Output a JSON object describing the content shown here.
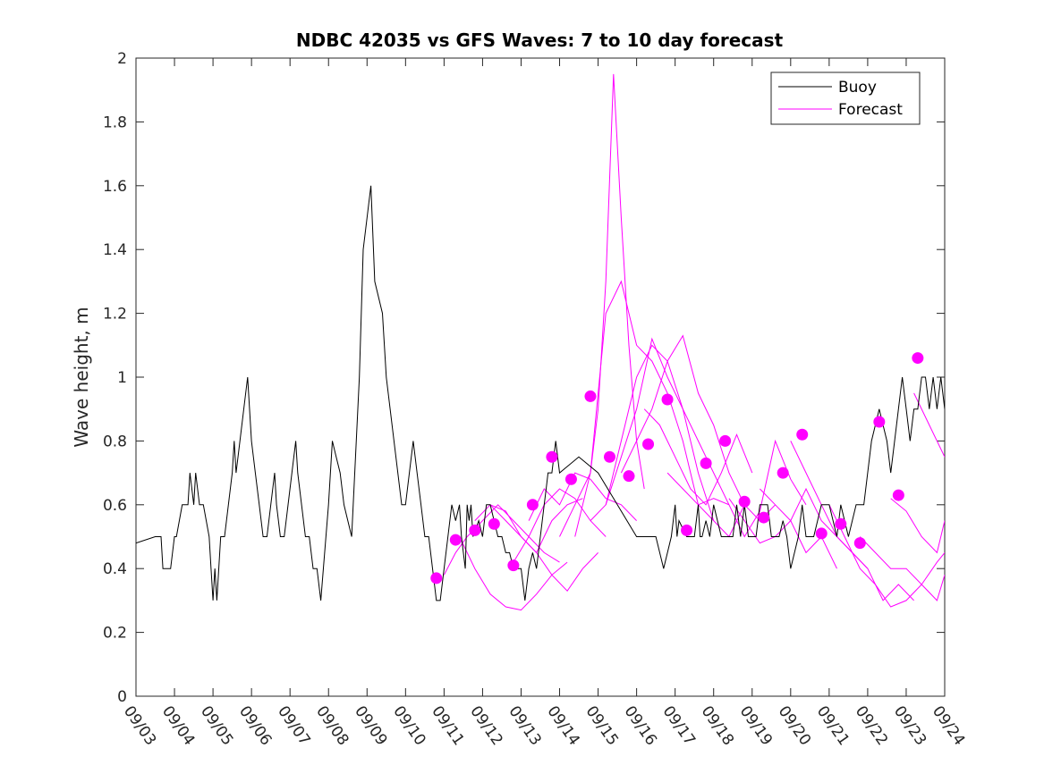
{
  "chart_data": {
    "type": "line",
    "title": "NDBC 42035 vs GFS Waves: 7 to 10 day forecast",
    "xlabel": "",
    "ylabel": "Wave height, m",
    "xlim": [
      0,
      21
    ],
    "ylim": [
      0,
      2
    ],
    "x_tick_labels": [
      "09/03",
      "09/04",
      "09/05",
      "09/06",
      "09/07",
      "09/08",
      "09/09",
      "09/10",
      "09/11",
      "09/12",
      "09/13",
      "09/14",
      "09/15",
      "09/16",
      "09/17",
      "09/18",
      "09/19",
      "09/20",
      "09/21",
      "09/22",
      "09/23",
      "09/24"
    ],
    "y_ticks": [
      0,
      0.2,
      0.4,
      0.6,
      0.8,
      1,
      1.2,
      1.4,
      1.6,
      1.8,
      2
    ],
    "y_tick_labels": [
      "0",
      "0.2",
      "0.4",
      "0.6",
      "0.8",
      "1",
      "1.2",
      "1.4",
      "1.6",
      "1.8",
      "2"
    ],
    "legend": {
      "position": "top-right",
      "entries": [
        {
          "label": "Buoy",
          "color": "#000000"
        },
        {
          "label": "Forecast",
          "color": "#ff00ff"
        }
      ]
    },
    "series": [
      {
        "name": "Buoy",
        "color": "#000000",
        "x": [
          0.0,
          0.5,
          0.65,
          0.7,
          0.9,
          1.0,
          1.05,
          1.2,
          1.35,
          1.4,
          1.5,
          1.55,
          1.65,
          1.75,
          1.9,
          1.95,
          2.0,
          2.05,
          2.1,
          2.2,
          2.3,
          2.4,
          2.5,
          2.55,
          2.6,
          2.7,
          2.8,
          2.9,
          3.0,
          3.1,
          3.2,
          3.3,
          3.4,
          3.5,
          3.6,
          3.65,
          3.75,
          3.85,
          3.95,
          4.05,
          4.15,
          4.2,
          4.3,
          4.4,
          4.5,
          4.6,
          4.7,
          4.8,
          5.0,
          5.1,
          5.2,
          5.3,
          5.4,
          5.5,
          5.6,
          5.8,
          5.9,
          6.0,
          6.1,
          6.2,
          6.4,
          6.5,
          6.6,
          6.7,
          6.8,
          6.9,
          7.0,
          7.1,
          7.2,
          7.3,
          7.4,
          7.5,
          7.6,
          7.7,
          7.8,
          7.9,
          8.0,
          8.1,
          8.2,
          8.3,
          8.4,
          8.45,
          8.55,
          8.6,
          8.65,
          8.7,
          8.75,
          8.9,
          9.0,
          9.1,
          9.2,
          9.3,
          9.4,
          9.5,
          9.6,
          9.7,
          9.8,
          9.9,
          10.0,
          10.1,
          10.2,
          10.3,
          10.4,
          10.5,
          10.6,
          10.65,
          10.7,
          10.8,
          10.9,
          11.0,
          11.5,
          12.0,
          12.5,
          13.0,
          13.5,
          13.7,
          13.9,
          14.0,
          14.05,
          14.1,
          14.3,
          14.5,
          14.6,
          14.65,
          14.7,
          14.8,
          14.9,
          15.0,
          15.2,
          15.4,
          15.5,
          15.6,
          15.7,
          15.8,
          15.9,
          16.0,
          16.1,
          16.2,
          16.4,
          16.5,
          16.7,
          16.8,
          16.9,
          17.0,
          17.2,
          17.3,
          17.4,
          17.6,
          17.8,
          18.0,
          18.2,
          18.3,
          18.5,
          18.6,
          18.7,
          18.9,
          19.0,
          19.1,
          19.3,
          19.5,
          19.6,
          19.7,
          19.8,
          19.9,
          20.0,
          20.1,
          20.2,
          20.3,
          20.4,
          20.5,
          20.6,
          20.7,
          20.8,
          20.9,
          21.0
        ],
        "values": [
          0.48,
          0.5,
          0.5,
          0.4,
          0.4,
          0.5,
          0.5,
          0.6,
          0.6,
          0.7,
          0.6,
          0.7,
          0.6,
          0.6,
          0.5,
          0.4,
          0.3,
          0.4,
          0.3,
          0.5,
          0.5,
          0.6,
          0.7,
          0.8,
          0.7,
          0.8,
          0.9,
          1.0,
          0.8,
          0.7,
          0.6,
          0.5,
          0.5,
          0.6,
          0.7,
          0.6,
          0.5,
          0.5,
          0.6,
          0.7,
          0.8,
          0.7,
          0.6,
          0.5,
          0.5,
          0.4,
          0.4,
          0.3,
          0.6,
          0.8,
          0.75,
          0.7,
          0.6,
          0.55,
          0.5,
          1.0,
          1.4,
          1.5,
          1.6,
          1.3,
          1.2,
          1.0,
          0.9,
          0.8,
          0.7,
          0.6,
          0.6,
          0.7,
          0.8,
          0.7,
          0.6,
          0.5,
          0.5,
          0.4,
          0.3,
          0.3,
          0.4,
          0.5,
          0.6,
          0.55,
          0.6,
          0.5,
          0.4,
          0.6,
          0.55,
          0.6,
          0.5,
          0.55,
          0.5,
          0.6,
          0.6,
          0.55,
          0.5,
          0.5,
          0.45,
          0.45,
          0.4,
          0.4,
          0.4,
          0.3,
          0.4,
          0.45,
          0.4,
          0.5,
          0.6,
          0.65,
          0.7,
          0.7,
          0.8,
          0.7,
          0.75,
          0.7,
          0.6,
          0.5,
          0.5,
          0.4,
          0.5,
          0.6,
          0.5,
          0.55,
          0.5,
          0.5,
          0.6,
          0.5,
          0.5,
          0.55,
          0.5,
          0.6,
          0.5,
          0.5,
          0.5,
          0.6,
          0.5,
          0.6,
          0.5,
          0.5,
          0.5,
          0.6,
          0.6,
          0.5,
          0.5,
          0.55,
          0.5,
          0.4,
          0.5,
          0.6,
          0.5,
          0.5,
          0.6,
          0.6,
          0.5,
          0.6,
          0.5,
          0.55,
          0.6,
          0.6,
          0.7,
          0.8,
          0.9,
          0.8,
          0.7,
          0.8,
          0.9,
          1.0,
          0.9,
          0.8,
          0.9,
          0.9,
          1.0,
          1.0,
          0.9,
          1.0,
          0.9,
          1.0,
          0.9
        ]
      },
      {
        "name": "Forecast",
        "color": "#ff00ff",
        "lines": [
          {
            "x": [
              8.0,
              8.3,
              8.6,
              9.0,
              9.4,
              9.8,
              10.2,
              10.6,
              11.0
            ],
            "values": [
              0.38,
              0.45,
              0.5,
              0.55,
              0.6,
              0.55,
              0.5,
              0.45,
              0.42
            ]
          },
          {
            "x": [
              8.4,
              8.8,
              9.2,
              9.6,
              10.0,
              10.4,
              10.8,
              11.2
            ],
            "values": [
              0.5,
              0.4,
              0.32,
              0.28,
              0.27,
              0.32,
              0.38,
              0.42
            ]
          },
          {
            "x": [
              8.8,
              9.2,
              9.6,
              10.0,
              10.4,
              10.8,
              11.2,
              11.6
            ],
            "values": [
              0.55,
              0.6,
              0.58,
              0.5,
              0.45,
              0.55,
              0.6,
              0.62
            ]
          },
          {
            "x": [
              9.2,
              9.6,
              10.0,
              10.4,
              10.8,
              11.2,
              11.6,
              12.0
            ],
            "values": [
              0.6,
              0.55,
              0.5,
              0.45,
              0.38,
              0.33,
              0.4,
              0.45
            ]
          },
          {
            "x": [
              9.8,
              10.2,
              10.6,
              11.0,
              11.4,
              11.8,
              12.2
            ],
            "values": [
              0.42,
              0.5,
              0.6,
              0.65,
              0.62,
              0.55,
              0.5
            ]
          },
          {
            "x": [
              10.2,
              10.6,
              11.0,
              11.4,
              11.8,
              12.2,
              12.6,
              13.0
            ],
            "values": [
              0.55,
              0.65,
              0.6,
              0.7,
              0.68,
              0.62,
              0.6,
              0.55
            ]
          },
          {
            "x": [
              11.0,
              11.4,
              11.8,
              12.0,
              12.2,
              12.4,
              12.6,
              12.8,
              13.0,
              13.2
            ],
            "values": [
              0.5,
              0.6,
              0.7,
              0.9,
              1.3,
              1.95,
              1.5,
              1.1,
              0.8,
              0.65
            ]
          },
          {
            "x": [
              11.4,
              11.8,
              12.2,
              12.6,
              13.0,
              13.4,
              13.8,
              14.2,
              14.6
            ],
            "values": [
              0.5,
              0.7,
              1.2,
              1.3,
              1.1,
              1.05,
              0.95,
              0.8,
              0.6
            ]
          },
          {
            "x": [
              11.8,
              12.2,
              12.6,
              13.0,
              13.4,
              13.8,
              14.2,
              14.6,
              15.0
            ],
            "values": [
              0.55,
              0.6,
              0.8,
              1.0,
              1.1,
              1.05,
              0.9,
              0.7,
              0.55
            ]
          },
          {
            "x": [
              12.2,
              12.6,
              13.0,
              13.4,
              13.8,
              14.2,
              14.6,
              15.0,
              15.4
            ],
            "values": [
              0.6,
              0.75,
              0.9,
              1.12,
              1.0,
              0.9,
              0.8,
              0.7,
              0.6
            ]
          },
          {
            "x": [
              12.6,
              13.0,
              13.4,
              13.8,
              14.2,
              14.6,
              15.0,
              15.4,
              15.8
            ],
            "values": [
              0.7,
              0.8,
              0.9,
              1.05,
              1.13,
              0.95,
              0.85,
              0.7,
              0.6
            ]
          },
          {
            "x": [
              13.2,
              13.6,
              14.0,
              14.4,
              14.8,
              15.2,
              15.6,
              16.0
            ],
            "values": [
              0.9,
              0.85,
              0.75,
              0.65,
              0.6,
              0.7,
              0.82,
              0.7
            ]
          },
          {
            "x": [
              13.8,
              14.2,
              14.6,
              15.0,
              15.4,
              15.8,
              16.2,
              16.6
            ],
            "values": [
              0.7,
              0.65,
              0.6,
              0.55,
              0.5,
              0.6,
              0.55,
              0.6
            ]
          },
          {
            "x": [
              14.6,
              15.0,
              15.4,
              15.8,
              16.2,
              16.6,
              17.0,
              17.4
            ],
            "values": [
              0.6,
              0.62,
              0.6,
              0.5,
              0.58,
              0.8,
              0.68,
              0.6
            ]
          },
          {
            "x": [
              15.4,
              15.8,
              16.2,
              16.6,
              17.0,
              17.4,
              17.8,
              18.2
            ],
            "values": [
              0.62,
              0.55,
              0.48,
              0.5,
              0.55,
              0.45,
              0.5,
              0.4
            ]
          },
          {
            "x": [
              16.2,
              16.6,
              17.0,
              17.4,
              17.8,
              18.2,
              18.6,
              19.0
            ],
            "values": [
              0.65,
              0.6,
              0.55,
              0.65,
              0.55,
              0.5,
              0.45,
              0.4
            ]
          },
          {
            "x": [
              17.0,
              17.4,
              17.8,
              18.2,
              18.6,
              19.0,
              19.4,
              19.8,
              20.2
            ],
            "values": [
              0.8,
              0.7,
              0.6,
              0.5,
              0.45,
              0.4,
              0.3,
              0.35,
              0.3
            ]
          },
          {
            "x": [
              18.0,
              18.4,
              18.8,
              19.2,
              19.6,
              20.0,
              20.4,
              20.8,
              21.0
            ],
            "values": [
              0.6,
              0.5,
              0.4,
              0.35,
              0.28,
              0.3,
              0.35,
              0.3,
              0.38
            ]
          },
          {
            "x": [
              18.8,
              19.2,
              19.6,
              20.0,
              20.4,
              20.8,
              21.0
            ],
            "values": [
              0.5,
              0.45,
              0.4,
              0.4,
              0.35,
              0.42,
              0.45
            ]
          },
          {
            "x": [
              19.6,
              20.0,
              20.4,
              20.8,
              21.0
            ],
            "values": [
              0.62,
              0.58,
              0.5,
              0.45,
              0.55
            ]
          },
          {
            "x": [
              20.2,
              20.6,
              21.0
            ],
            "values": [
              0.95,
              0.85,
              0.75
            ]
          }
        ],
        "markers": {
          "x": [
            7.8,
            8.3,
            8.8,
            9.3,
            9.8,
            10.3,
            10.8,
            11.3,
            11.8,
            12.3,
            12.8,
            13.3,
            13.8,
            14.3,
            14.8,
            15.3,
            15.8,
            16.3,
            16.8,
            17.3,
            17.8,
            18.3,
            18.8,
            19.3,
            19.8,
            20.3
          ],
          "values": [
            0.37,
            0.49,
            0.52,
            0.54,
            0.41,
            0.6,
            0.75,
            0.68,
            0.94,
            0.75,
            0.69,
            0.79,
            0.93,
            0.52,
            0.73,
            0.8,
            0.61,
            0.56,
            0.7,
            0.82,
            0.51,
            0.54,
            0.48,
            0.86,
            0.63,
            1.06
          ]
        }
      }
    ]
  }
}
